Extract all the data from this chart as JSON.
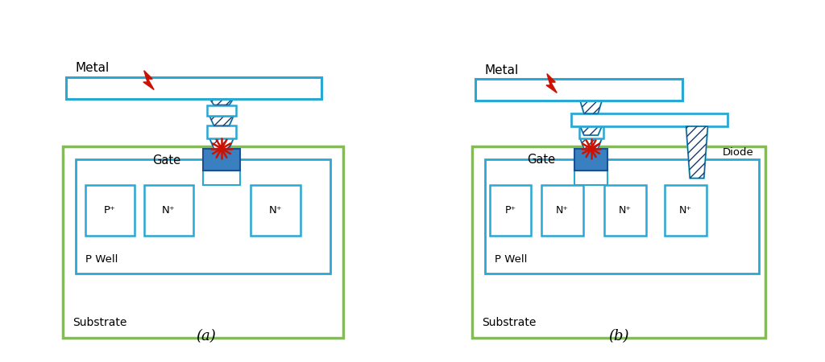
{
  "bg_color": "#ffffff",
  "white": "#ffffff",
  "cyan_edge": "#29a8d4",
  "green_edge": "#7dc242",
  "hatch_color": "#1a3a6e",
  "gate_fill": "#3a80c0",
  "gate_dark": "#1a5090",
  "label_a": "(a)",
  "label_b": "(b)",
  "panel_a": {
    "metal_label": "Metal",
    "gate_label": "Gate",
    "pwell_label": "P Well",
    "substrate_label": "Substrate",
    "diffusion_labels": [
      "P⁺",
      "N⁺",
      "N⁺"
    ]
  },
  "panel_b": {
    "metal_label": "Metal",
    "gate_label": "Gate",
    "pwell_label": "P Well",
    "substrate_label": "Substrate",
    "diode_label": "Diode",
    "diffusion_labels": [
      "P⁺",
      "N⁺",
      "N⁺",
      "N⁺"
    ]
  }
}
